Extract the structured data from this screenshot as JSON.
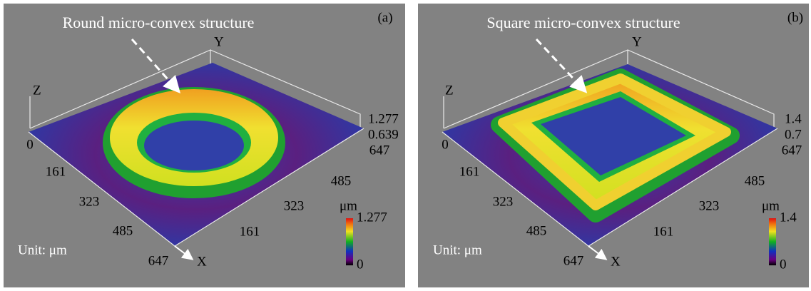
{
  "panels": [
    {
      "letter": "(a)",
      "annotation": "Round micro-convex structure",
      "axis_labels": {
        "x": "X",
        "y": "Y",
        "z": "Z"
      },
      "x_ticks": [
        "0",
        "161",
        "323",
        "485",
        "647"
      ],
      "y_ticks": [
        "647",
        "485",
        "323",
        "161"
      ],
      "z_ticks": [
        "1.277",
        "0.639"
      ],
      "colorbar": {
        "unit": "μm",
        "max": "1.277",
        "min": "0"
      },
      "unit_note": "Unit: μm"
    },
    {
      "letter": "(b)",
      "annotation": "Square micro-convex structure",
      "axis_labels": {
        "x": "X",
        "y": "Y",
        "z": "Z"
      },
      "x_ticks": [
        "0",
        "161",
        "323",
        "485",
        "647"
      ],
      "y_ticks": [
        "647",
        "485",
        "323",
        "161"
      ],
      "z_ticks": [
        "1.4",
        "0.7"
      ],
      "colorbar": {
        "unit": "μm",
        "max": "1.4",
        "min": "0"
      },
      "unit_note": "Unit: μm"
    }
  ]
}
